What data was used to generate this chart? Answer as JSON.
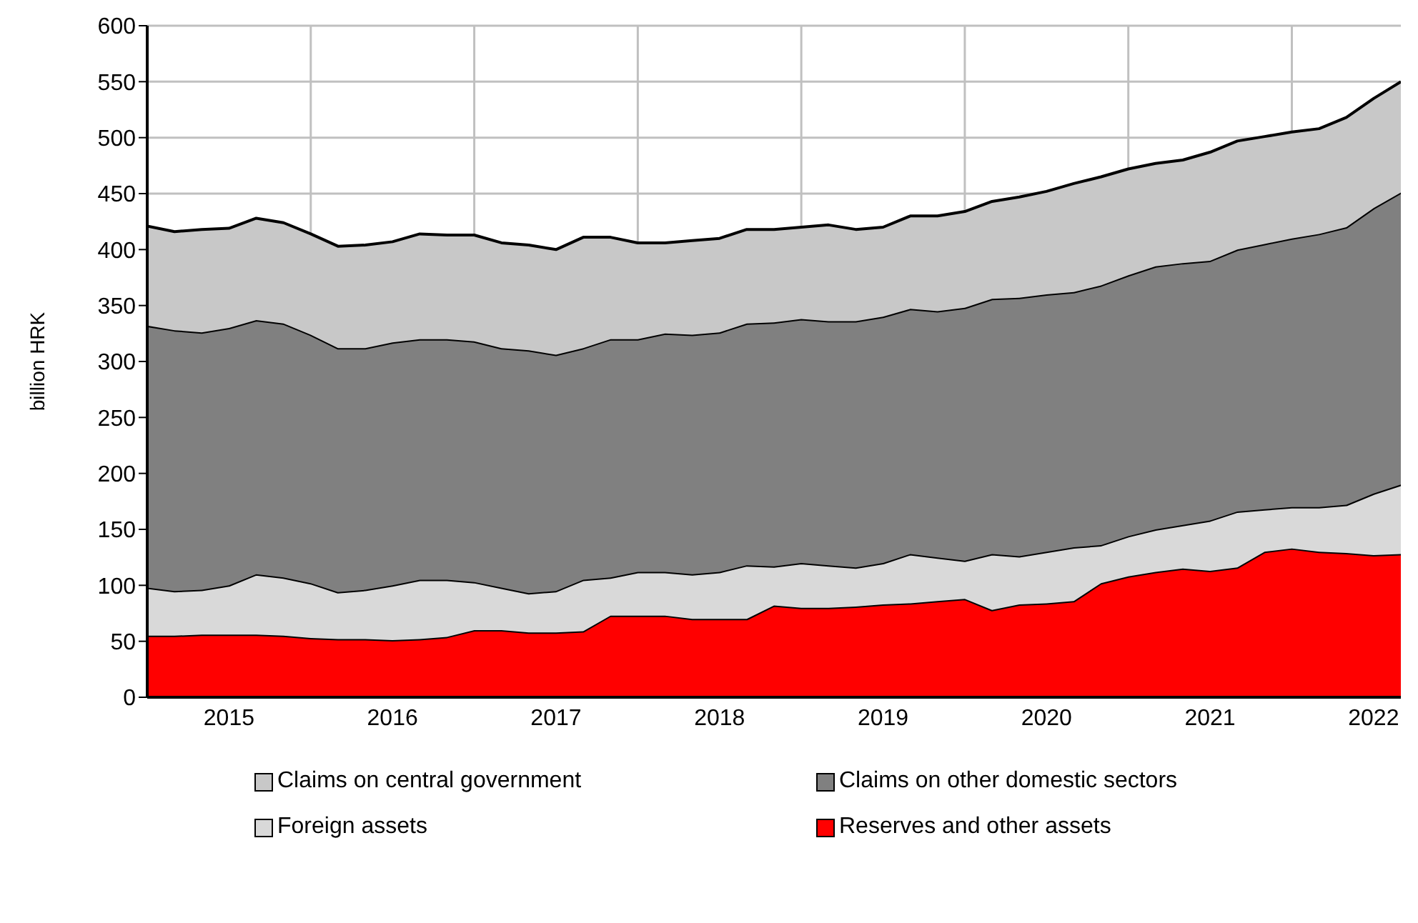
{
  "chart_data": {
    "type": "area",
    "stacked": true,
    "ylabel": "billion HRK",
    "ylim": [
      0,
      600
    ],
    "yticks": [
      0,
      50,
      100,
      150,
      200,
      250,
      300,
      350,
      400,
      450,
      500,
      550,
      600
    ],
    "xlim": [
      "2015-01",
      "2022-09"
    ],
    "xticks": [
      {
        "value": "2015-07",
        "label": "2015"
      },
      {
        "value": "2016-01",
        "label": null
      },
      {
        "value": "2016-07",
        "label": "2016"
      },
      {
        "value": "2017-01",
        "label": null
      },
      {
        "value": "2017-07",
        "label": "2017"
      },
      {
        "value": "2018-01",
        "label": null
      },
      {
        "value": "2018-07",
        "label": "2018"
      },
      {
        "value": "2019-01",
        "label": null
      },
      {
        "value": "2019-07",
        "label": "2019"
      },
      {
        "value": "2020-01",
        "label": null
      },
      {
        "value": "2020-07",
        "label": "2020"
      },
      {
        "value": "2021-01",
        "label": null
      },
      {
        "value": "2021-07",
        "label": "2021"
      },
      {
        "value": "2022-01",
        "label": null
      },
      {
        "value": "2022-07",
        "label": "2022"
      }
    ],
    "grid": true,
    "legend": "bottom",
    "x": [
      "2015-01",
      "2015-03",
      "2015-05",
      "2015-07",
      "2015-09",
      "2015-11",
      "2016-01",
      "2016-03",
      "2016-05",
      "2016-07",
      "2016-09",
      "2016-11",
      "2017-01",
      "2017-03",
      "2017-05",
      "2017-07",
      "2017-09",
      "2017-11",
      "2018-01",
      "2018-03",
      "2018-05",
      "2018-07",
      "2018-09",
      "2018-11",
      "2019-01",
      "2019-03",
      "2019-05",
      "2019-07",
      "2019-09",
      "2019-11",
      "2020-01",
      "2020-03",
      "2020-05",
      "2020-07",
      "2020-09",
      "2020-11",
      "2021-01",
      "2021-03",
      "2021-05",
      "2021-07",
      "2021-09",
      "2021-11",
      "2022-01",
      "2022-03",
      "2022-05",
      "2022-07",
      "2022-09"
    ],
    "series": [
      {
        "name": "Reserves and other assets",
        "color": "#ff0000",
        "values": [
          55,
          55,
          56,
          56,
          56,
          55,
          53,
          52,
          52,
          51,
          52,
          54,
          60,
          60,
          58,
          58,
          59,
          73,
          73,
          73,
          70,
          70,
          70,
          82,
          80,
          80,
          81,
          83,
          84,
          86,
          88,
          78,
          83,
          84,
          86,
          102,
          108,
          112,
          115,
          113,
          116,
          130,
          133,
          130,
          129,
          127,
          128
        ]
      },
      {
        "name": "Foreign assets",
        "color": "#d9d9d9",
        "values": [
          43,
          40,
          40,
          44,
          54,
          52,
          49,
          42,
          44,
          49,
          53,
          51,
          43,
          38,
          35,
          37,
          46,
          34,
          39,
          39,
          40,
          42,
          48,
          35,
          40,
          38,
          35,
          37,
          44,
          39,
          34,
          50,
          43,
          46,
          48,
          34,
          36,
          38,
          39,
          45,
          50,
          38,
          37,
          40,
          43,
          55,
          62
        ]
      },
      {
        "name": "Claims on other domestic sectors",
        "color": "#808080",
        "values": [
          234,
          233,
          230,
          230,
          227,
          227,
          222,
          218,
          216,
          217,
          215,
          215,
          215,
          214,
          217,
          211,
          207,
          213,
          208,
          213,
          214,
          214,
          216,
          218,
          218,
          218,
          220,
          220,
          219,
          220,
          226,
          228,
          231,
          230,
          228,
          232,
          233,
          235,
          234,
          232,
          234,
          237,
          240,
          244,
          248,
          255,
          261
        ]
      },
      {
        "name": "Claims on central government",
        "color": "#c8c8c8",
        "values": [
          89,
          88,
          92,
          89,
          91,
          90,
          90,
          91,
          92,
          90,
          94,
          93,
          95,
          94,
          94,
          94,
          99,
          91,
          86,
          81,
          84,
          84,
          84,
          83,
          82,
          86,
          82,
          80,
          83,
          85,
          86,
          87,
          90,
          92,
          97,
          97,
          95,
          92,
          92,
          97,
          97,
          96,
          95,
          94,
          98,
          98,
          99
        ]
      }
    ]
  }
}
